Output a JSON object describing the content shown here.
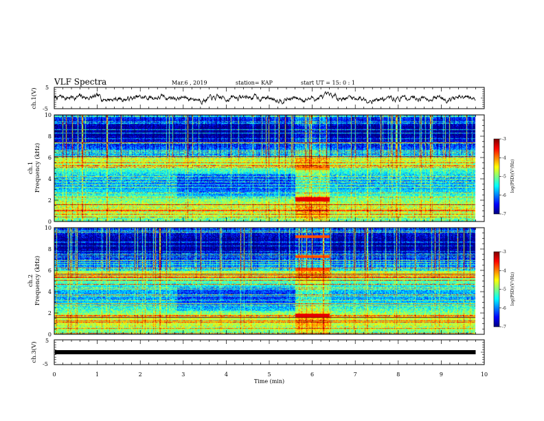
{
  "header": {
    "title": "VLF Spectra",
    "date": "Mar.6 , 2019",
    "station": "station= KAP",
    "start": "start UT =  15: 0 : 1"
  },
  "chart_data": [
    {
      "type": "line",
      "name": "ch1-waveform",
      "ylabel": "ch.1(V)",
      "ylim": [
        -5,
        5
      ],
      "yticks": [
        "5",
        "-5"
      ],
      "xlim": [
        0,
        10
      ],
      "x_end_data": 9.8,
      "description_level": "noisy signal centered near 0 V, amplitude about ±1.5 V"
    },
    {
      "type": "heatmap",
      "name": "ch1-spectrogram",
      "ylabel": "ch.1\nFrequency (kHz)",
      "ylabel_line1": "ch.1",
      "ylabel_line2": "Frequency (kHz)",
      "ylim": [
        0,
        10
      ],
      "yticks": [
        "0",
        "2",
        "4",
        "6",
        "8",
        "10"
      ],
      "xlim": [
        0,
        10
      ],
      "x_end_data": 9.8,
      "colorbar": {
        "label": "log(PSD)(V²/Hz)",
        "range": [
          -7,
          -3
        ],
        "ticks": [
          "-3",
          "-4",
          "-5",
          "-6",
          "-7"
        ]
      },
      "features": {
        "enhanced_window_min": [
          5.6,
          6.4
        ],
        "strong_line_khz": 2.1,
        "bright_band_khz": [
          4.9,
          5.3
        ]
      }
    },
    {
      "type": "heatmap",
      "name": "ch2-spectrogram",
      "ylabel_line1": "ch.2",
      "ylabel_line2": "Frequency (kHz)",
      "ylim": [
        0,
        10
      ],
      "yticks": [
        "0",
        "2",
        "4",
        "6",
        "8",
        "10"
      ],
      "xlim": [
        0,
        10
      ],
      "x_end_data": 9.8,
      "colorbar": {
        "label": "log(PSD)(V²/Hz)",
        "range": [
          -7,
          -3
        ],
        "ticks": [
          "-3",
          "-4",
          "-5",
          "-6",
          "-7"
        ]
      },
      "features": {
        "enhanced_window_min": [
          5.6,
          6.4
        ],
        "strong_line_khz": 1.8,
        "lines_in_window_khz": [
          9.2,
          7.3,
          6.1
        ]
      }
    },
    {
      "type": "line",
      "name": "ch3-waveform",
      "ylabel": "ch.3(V)",
      "ylim": [
        -5,
        5
      ],
      "yticks": [
        "5",
        "-5"
      ],
      "xlim": [
        0,
        10
      ],
      "x_end_data": 9.8,
      "constant_value": 0,
      "xlabel": "Time (min)",
      "xticks": [
        "0",
        "1",
        "2",
        "3",
        "4",
        "5",
        "6",
        "7",
        "8",
        "9",
        "10"
      ]
    }
  ]
}
